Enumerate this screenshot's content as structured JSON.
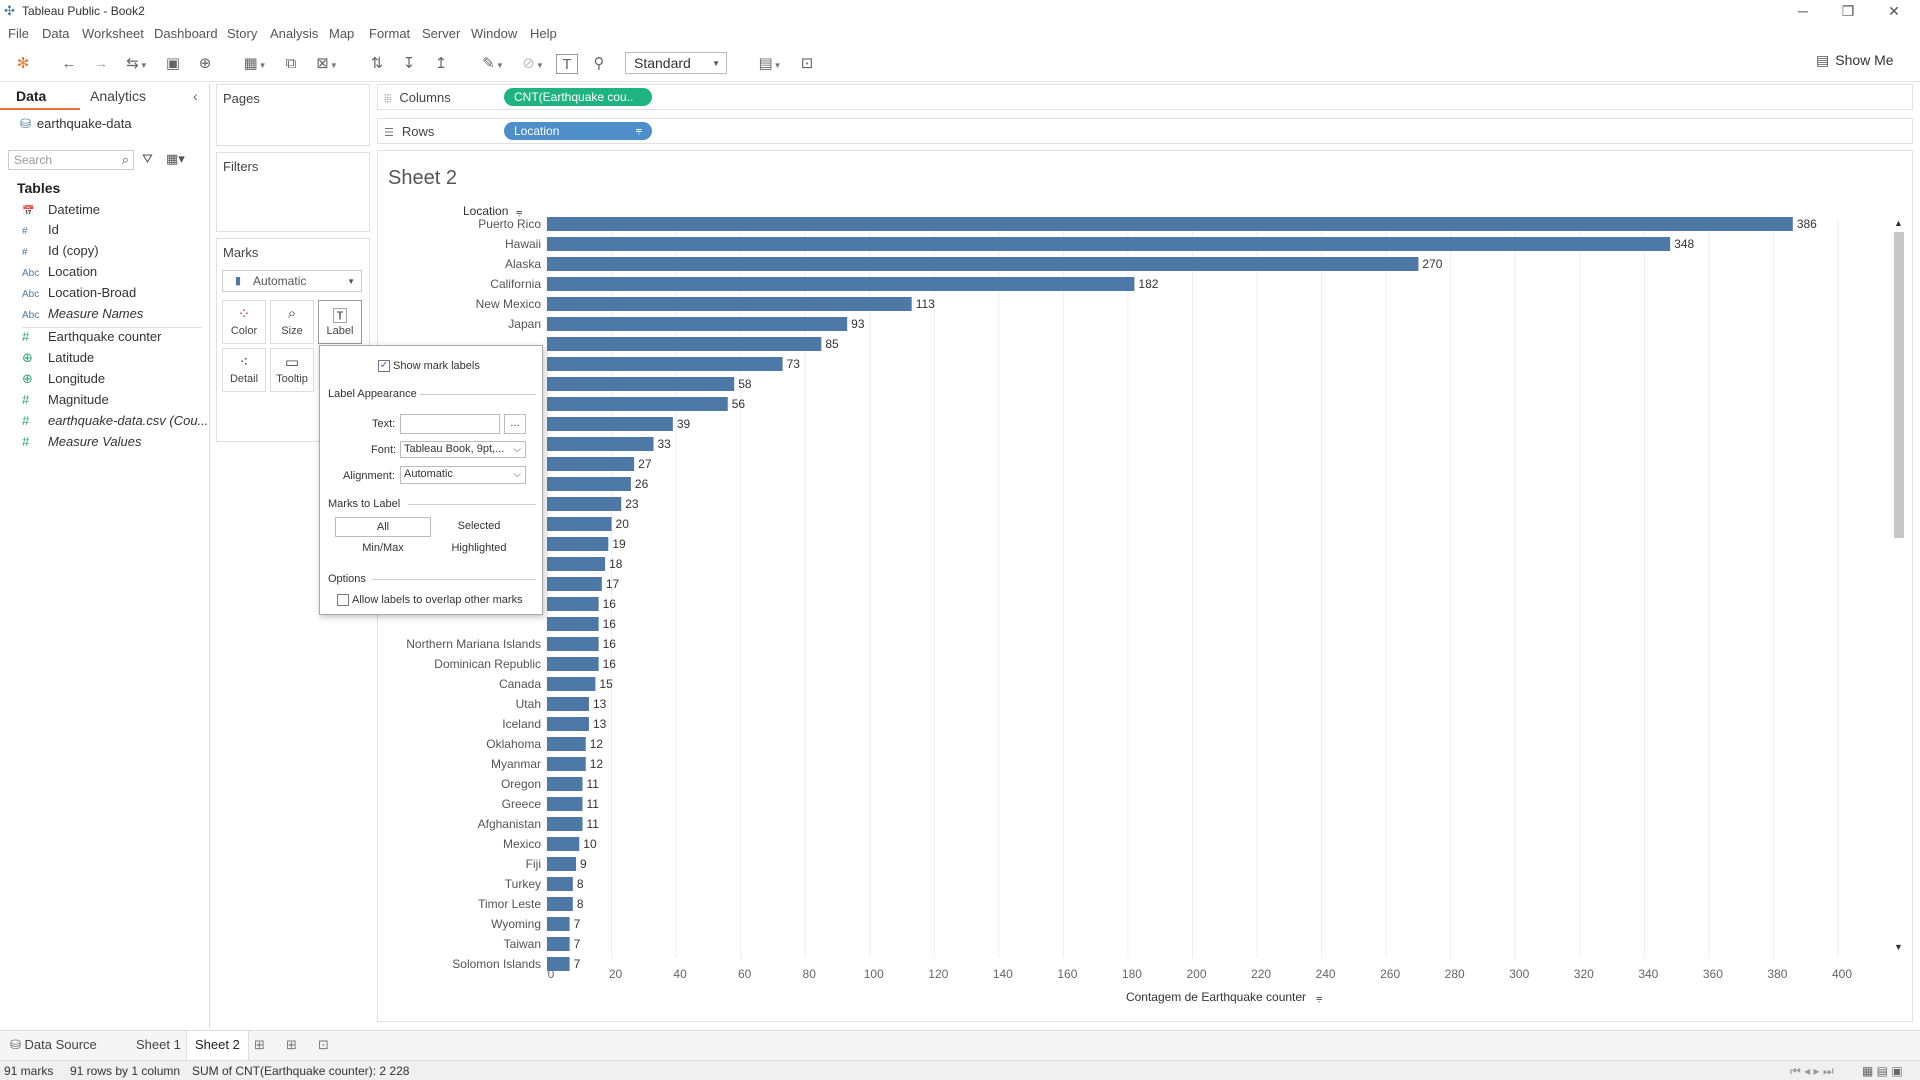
{
  "window": {
    "title": "Tableau Public - Book2",
    "controls": {
      "minimize": "─",
      "maximize": "❐",
      "close": "✕"
    }
  },
  "menu": [
    "File",
    "Data",
    "Worksheet",
    "Dashboard",
    "Story",
    "Analysis",
    "Map",
    "Format",
    "Server",
    "Window",
    "Help"
  ],
  "toolbar": {
    "fit_select": "Standard",
    "show_me": "Show Me"
  },
  "left_panel": {
    "tabs": {
      "data": "Data",
      "analytics": "Analytics"
    },
    "datasource": "earthquake-data",
    "search_placeholder": "Search",
    "tables_heading": "Tables",
    "fields": [
      {
        "name": "Datetime",
        "type": "date"
      },
      {
        "name": "Id",
        "type": "dim-num"
      },
      {
        "name": "Id (copy)",
        "type": "dim-num"
      },
      {
        "name": "Location",
        "type": "abc"
      },
      {
        "name": "Location-Broad",
        "type": "abc"
      },
      {
        "name": "Measure Names",
        "type": "abc",
        "italic": true
      },
      {
        "name": "Earthquake counter",
        "type": "measure"
      },
      {
        "name": "Latitude",
        "type": "geo"
      },
      {
        "name": "Longitude",
        "type": "geo"
      },
      {
        "name": "Magnitude",
        "type": "measure"
      },
      {
        "name": "earthquake-data.csv (Cou...",
        "type": "measure",
        "italic": true
      },
      {
        "name": "Measure Values",
        "type": "measure",
        "italic": true
      }
    ]
  },
  "cards": {
    "pages": "Pages",
    "filters": "Filters",
    "marks": "Marks",
    "mark_type": "Automatic",
    "mark_buttons": [
      "Color",
      "Size",
      "Label",
      "Detail",
      "Tooltip"
    ]
  },
  "shelves": {
    "columns_label": "Columns",
    "columns_pill": "CNT(Earthquake cou..",
    "rows_label": "Rows",
    "rows_pill": "Location"
  },
  "colors": {
    "bar": "#4e79a7",
    "pill_measure": "#1fb382",
    "pill_dimension": "#4e8fc9"
  },
  "sheet_title": "Sheet 2",
  "chart_data": {
    "type": "bar",
    "orientation": "horizontal",
    "row_header": "Location",
    "xlabel": "Contagem de Earthquake counter",
    "xlim": [
      0,
      400
    ],
    "xticks": [
      0,
      20,
      40,
      60,
      80,
      100,
      120,
      140,
      160,
      180,
      200,
      220,
      240,
      260,
      280,
      300,
      320,
      340,
      360,
      380,
      400
    ],
    "grid": true,
    "categories": [
      "Puerto Rico",
      "Hawaii",
      "Alaska",
      "California",
      "New Mexico",
      "Japan",
      "",
      "",
      "",
      "",
      "",
      "",
      "",
      "",
      "",
      "",
      "",
      "",
      "",
      "",
      "",
      "Northern Mariana Islands",
      "Dominican Republic",
      "Canada",
      "Utah",
      "Iceland",
      "Oklahoma",
      "Myanmar",
      "Oregon",
      "Greece",
      "Afghanistan",
      "Mexico",
      "Fiji",
      "Turkey",
      "Timor Leste",
      "Wyoming",
      "Taiwan",
      "Solomon Islands"
    ],
    "values": [
      386,
      348,
      270,
      182,
      113,
      93,
      85,
      73,
      58,
      56,
      39,
      33,
      27,
      26,
      23,
      20,
      19,
      18,
      17,
      16,
      16,
      16,
      16,
      15,
      13,
      13,
      12,
      12,
      11,
      11,
      11,
      10,
      9,
      8,
      8,
      7,
      7,
      7
    ]
  },
  "label_popup": {
    "show_mark_labels": "Show mark labels",
    "show_checked": true,
    "label_appearance": "Label Appearance",
    "text_label": "Text:",
    "text_btn": "...",
    "font_label": "Font:",
    "font_value": "Tableau Book, 9pt,...",
    "alignment_label": "Alignment:",
    "alignment_value": "Automatic",
    "marks_to_label": "Marks to Label",
    "options_marks": [
      "All",
      "Selected",
      "Min/Max",
      "Highlighted"
    ],
    "options_heading": "Options",
    "allow_overlap": "Allow labels to overlap other marks"
  },
  "sheet_tabs": [
    "Data Source",
    "Sheet 1",
    "Sheet 2"
  ],
  "status": {
    "marks": "91 marks",
    "rows_cols": "91 rows by 1 column",
    "sum": "SUM of CNT(Earthquake counter): 2 228"
  }
}
